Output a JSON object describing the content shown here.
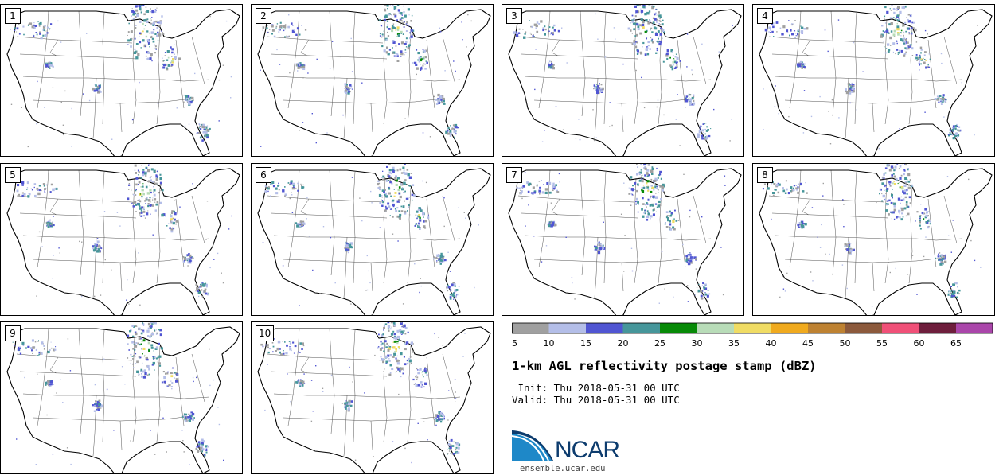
{
  "panels": [
    {
      "label": "1"
    },
    {
      "label": "2"
    },
    {
      "label": "3"
    },
    {
      "label": "4"
    },
    {
      "label": "5"
    },
    {
      "label": "6"
    },
    {
      "label": "7"
    },
    {
      "label": "8"
    },
    {
      "label": "9"
    },
    {
      "label": "10"
    }
  ],
  "colorbar": {
    "colors": [
      "#a0a0a0",
      "#b4bee8",
      "#5055d2",
      "#46969a",
      "#078a07",
      "#b8dcb8",
      "#f0dc64",
      "#f0aa1e",
      "#be8232",
      "#8c5a3c",
      "#f05078",
      "#6e1e3c",
      "#aa46aa"
    ],
    "tick_labels": [
      "5",
      "10",
      "15",
      "20",
      "25",
      "30",
      "35",
      "40",
      "45",
      "50",
      "55",
      "60",
      "65"
    ]
  },
  "title": "1-km AGL reflectivity postage stamp (dBZ)",
  "init_text": " Init: Thu 2018-05-31 00 UTC",
  "valid_text": "Valid: Thu 2018-05-31 00 UTC",
  "logo_text": "NCAR",
  "site_text": "ensemble.ucar.edu"
}
